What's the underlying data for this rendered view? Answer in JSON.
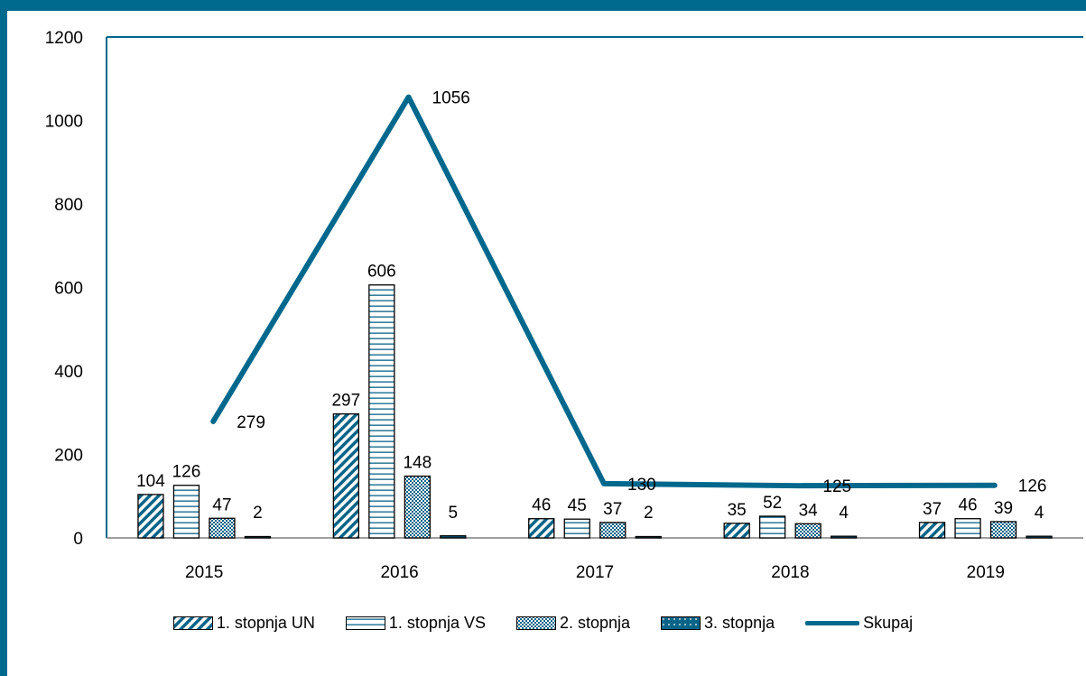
{
  "colors": {
    "frame": "#006a8e",
    "line": "#00688c",
    "bar_dark": "#0a6488",
    "axis": "#7f7f7f"
  },
  "chart_data": {
    "type": "bar",
    "categories": [
      "2015",
      "2016",
      "2017",
      "2018",
      "2019"
    ],
    "ylim": [
      0,
      1200
    ],
    "y_ticks": [
      "0",
      "200",
      "400",
      "600",
      "800",
      "1000",
      "1200"
    ],
    "series": [
      {
        "name": "1. stopnja UN",
        "values": [
          104,
          297,
          46,
          35,
          37
        ],
        "pattern": "diagonal"
      },
      {
        "name": "1. stopnja VS",
        "values": [
          126,
          606,
          45,
          52,
          46
        ],
        "pattern": "horizontal"
      },
      {
        "name": "2. stopnja",
        "values": [
          47,
          148,
          37,
          34,
          39
        ],
        "pattern": "checker"
      },
      {
        "name": "3. stopnja",
        "values": [
          2,
          5,
          2,
          4,
          4
        ],
        "pattern": "dots"
      }
    ],
    "line_series": {
      "name": "Skupaj",
      "values": [
        279,
        1056,
        130,
        125,
        126
      ]
    },
    "legend_position": "bottom",
    "grid": false
  }
}
